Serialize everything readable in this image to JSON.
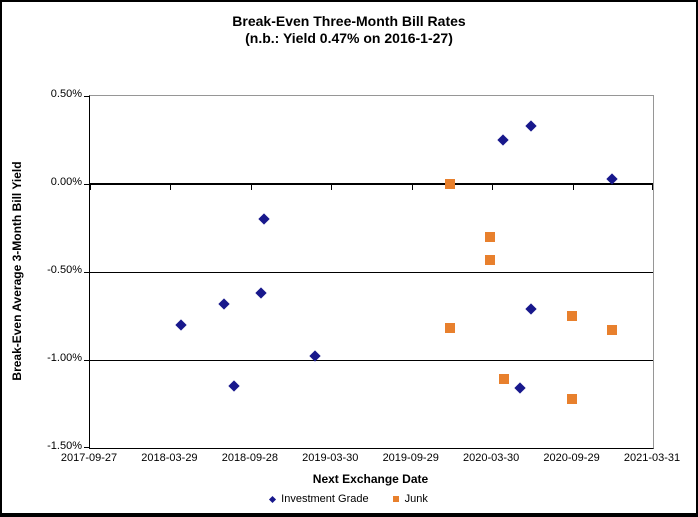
{
  "chart": {
    "title_line1": "Break-Even Three-Month Bill Rates",
    "title_line2": "(n.b.: Yield 0.47% on 2016-1-27)",
    "x_axis": {
      "title": "Next Exchange Date",
      "tick_labels": [
        "2017-09-27",
        "2018-03-29",
        "2018-09-28",
        "2019-03-30",
        "2019-09-29",
        "2020-03-30",
        "2020-09-29",
        "2021-03-31"
      ],
      "range": [
        "2017-09-27",
        "2021-03-31"
      ]
    },
    "y_axis": {
      "title": "Break-Even Average 3-Month  Bill Yield",
      "ticks": [
        {
          "label": "0.50%",
          "value": 0.5
        },
        {
          "label": "0.00%",
          "value": 0.0
        },
        {
          "label": "-0.50%",
          "value": -0.5
        },
        {
          "label": "-1.00%",
          "value": -1.0
        },
        {
          "label": "-1.50%",
          "value": -1.5
        }
      ],
      "range": [
        -1.5,
        0.5
      ]
    },
    "legend": [
      {
        "label": "Investment Grade",
        "marker": "diamond-icon",
        "color": "#18188C"
      },
      {
        "label": "Junk",
        "marker": "square-icon",
        "color": "#E8802D"
      }
    ],
    "colors": {
      "investment_grade": "#18188C",
      "junk": "#E8802D",
      "plot_border_gray": "#969696",
      "axis_black": "#000000"
    }
  },
  "chart_data": {
    "type": "scatter",
    "title": "Break-Even Three-Month Bill Rates (n.b.: Yield 0.47% on 2016-1-27)",
    "xlabel": "Next Exchange Date",
    "ylabel": "Break-Even Average 3-Month Bill Yield",
    "x_range": [
      "2017-09-27",
      "2021-03-31"
    ],
    "ylim": [
      -1.5,
      0.5
    ],
    "y_unit": "percent",
    "grid": "horizontal",
    "legend_position": "bottom",
    "series": [
      {
        "name": "Investment Grade",
        "marker": "diamond",
        "color": "#18188C",
        "points": [
          {
            "x": "2018-04-22",
            "y": -0.8
          },
          {
            "x": "2018-07-30",
            "y": -0.68
          },
          {
            "x": "2018-08-21",
            "y": -1.15
          },
          {
            "x": "2018-10-22",
            "y": -0.62
          },
          {
            "x": "2018-10-29",
            "y": -0.2
          },
          {
            "x": "2019-02-20",
            "y": -0.98
          },
          {
            "x": "2020-04-24",
            "y": 0.25
          },
          {
            "x": "2020-06-01",
            "y": -1.16
          },
          {
            "x": "2020-06-26",
            "y": 0.33
          },
          {
            "x": "2020-06-26",
            "y": -0.71
          },
          {
            "x": "2020-12-28",
            "y": 0.03
          }
        ]
      },
      {
        "name": "Junk",
        "marker": "square",
        "color": "#E8802D",
        "points": [
          {
            "x": "2019-12-24",
            "y": 0.0
          },
          {
            "x": "2019-12-24",
            "y": -0.82
          },
          {
            "x": "2020-03-25",
            "y": -0.3
          },
          {
            "x": "2020-03-25",
            "y": -0.43
          },
          {
            "x": "2020-04-26",
            "y": -1.11
          },
          {
            "x": "2020-09-28",
            "y": -0.75
          },
          {
            "x": "2020-09-28",
            "y": -1.22
          },
          {
            "x": "2020-12-28",
            "y": -0.83
          }
        ]
      }
    ]
  }
}
